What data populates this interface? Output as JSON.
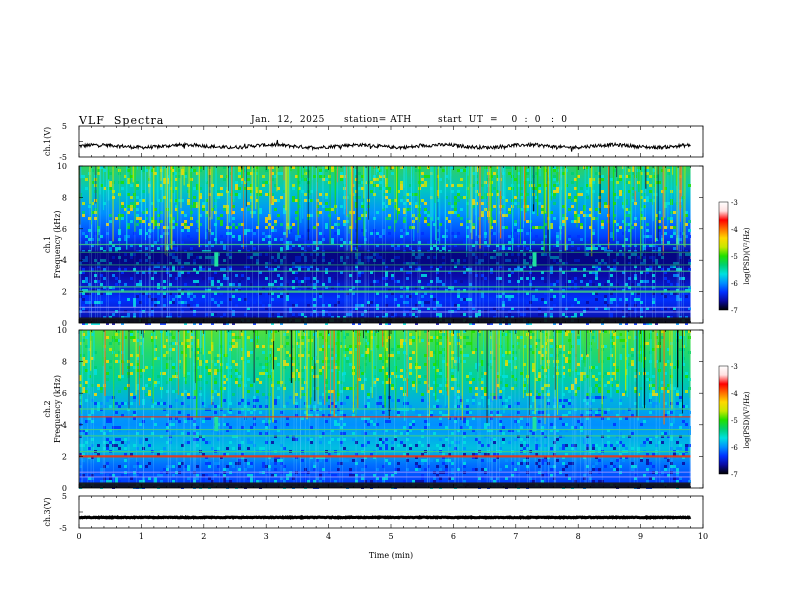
{
  "header": {
    "title": "VLF  Spectra",
    "date": "Jan.  12,  2025",
    "station": "station= ATH",
    "start": "start  UT  =    0  :  0   :  0"
  },
  "colors": {
    "waveform": "#000000",
    "colormap": [
      "#000000",
      "#0a0a9e",
      "#0030ff",
      "#0090ff",
      "#00e0e0",
      "#00d070",
      "#20e000",
      "#c8e800",
      "#ffd800",
      "#ff7000",
      "#ff0000",
      "#ffd0d0"
    ]
  },
  "chart_data": [
    {
      "id": "ch1-waveform",
      "type": "line",
      "ylabel": "ch.1(V)",
      "ylim": [
        -5,
        5
      ],
      "yticks": [
        "5",
        "-5"
      ],
      "series": [
        {
          "note_level": -1.5,
          "values": []
        }
      ]
    },
    {
      "id": "ch1-spectrogram",
      "type": "heatmap",
      "ylabel_top": "ch.1",
      "ylabel": "Frequency  (kHz)",
      "ylim": [
        0,
        10
      ],
      "yticks": [
        "0",
        "2",
        "4",
        "6",
        "8",
        "10"
      ],
      "colorbar": {
        "label": "log(PSD)(V²/Hz)",
        "ticks": [
          "-3",
          "-4",
          "-5",
          "-6",
          "-7"
        ],
        "range": [
          -7,
          -3
        ]
      },
      "bands_khz": [
        0.3,
        0.7,
        1.0,
        2.0,
        2.3,
        3.3,
        3.7,
        4.5,
        5.0
      ],
      "burst_times_min": [
        2.2,
        7.3
      ]
    },
    {
      "id": "ch2-spectrogram",
      "type": "heatmap",
      "ylabel_top": "ch.2",
      "ylabel": "Frequency  (kHz)",
      "ylim": [
        0,
        10
      ],
      "yticks": [
        "0",
        "2",
        "4",
        "6",
        "8",
        "10"
      ],
      "colorbar": {
        "label": "log(PSD)(V²/Hz)",
        "ticks": [
          "-3",
          "-4",
          "-5",
          "-6",
          "-7"
        ],
        "range": [
          -7,
          -3
        ]
      },
      "bands_khz": [
        0.3,
        0.7,
        1.0,
        2.0,
        2.3,
        3.3,
        3.7,
        4.5,
        5.0
      ],
      "burst_times_min": [
        2.2,
        7.3
      ]
    },
    {
      "id": "ch3-waveform",
      "type": "line",
      "ylabel": "ch.3(V)",
      "ylim": [
        -5,
        5
      ],
      "yticks": [
        "5",
        "-5"
      ],
      "series": [
        {
          "note_level": -1.7,
          "values": []
        }
      ]
    }
  ],
  "xaxis": {
    "label": "Time  (min)",
    "xlim": [
      0,
      10
    ],
    "ticks": [
      "0",
      "1",
      "2",
      "3",
      "4",
      "5",
      "6",
      "7",
      "8",
      "9",
      "10"
    ],
    "data_end_min": 9.8
  }
}
